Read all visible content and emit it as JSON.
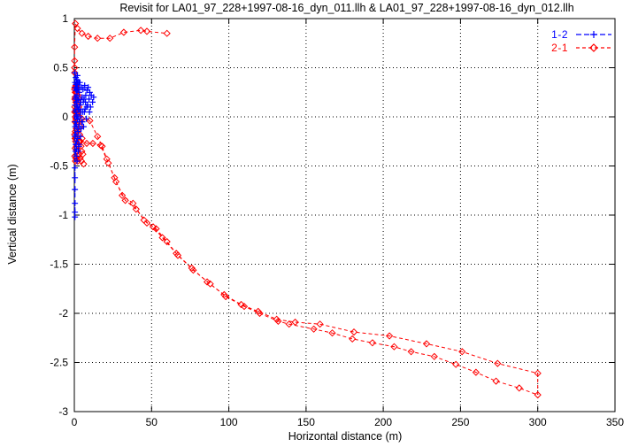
{
  "title": "Revisit for LA01_97_228+1997-08-16_dyn_011.llh & LA01_97_228+1997-08-16_dyn_012.llh",
  "chart_data": {
    "type": "scatter",
    "title": "Revisit for LA01_97_228+1997-08-16_dyn_011.llh & LA01_97_228+1997-08-16_dyn_012.llh",
    "xlabel": "Horizontal distance (m)",
    "ylabel": "Vertical distance (m)",
    "xlim": [
      0,
      350
    ],
    "ylim": [
      -3,
      1
    ],
    "xticks": [
      0,
      50,
      100,
      150,
      200,
      250,
      300,
      350
    ],
    "yticks": [
      1,
      0.5,
      0,
      -0.5,
      -1,
      -1.5,
      -2,
      -2.5,
      -3
    ],
    "grid": true,
    "legend_position": "top-right-inside",
    "background": "#ffffff",
    "axis_color": "#000000",
    "series": [
      {
        "name": "1-2",
        "color": "#0000ff",
        "marker": "plus",
        "linestyle": "dashed",
        "cluster": [
          [
            0.4,
            -0.2
          ],
          [
            0.5,
            0.12
          ],
          [
            0.5,
            0.35
          ],
          [
            0.6,
            0.3
          ],
          [
            0.7,
            -0.05
          ],
          [
            0.7,
            0.07
          ],
          [
            0.8,
            -0.35
          ],
          [
            0.9,
            0.2
          ],
          [
            0.9,
            -0.28
          ],
          [
            1.0,
            0.05
          ],
          [
            1.0,
            0.4
          ],
          [
            1.05,
            0.27
          ],
          [
            1.1,
            -0.18
          ],
          [
            1.2,
            0.3
          ],
          [
            1.2,
            -0.4
          ],
          [
            1.3,
            -0.08
          ],
          [
            1.3,
            0.0
          ],
          [
            1.4,
            0.15
          ],
          [
            1.5,
            -0.25
          ],
          [
            1.5,
            0.38
          ],
          [
            1.55,
            0.12
          ],
          [
            1.6,
            0.02
          ],
          [
            1.6,
            0.28
          ],
          [
            1.7,
            0.22
          ],
          [
            1.8,
            -0.12
          ],
          [
            1.8,
            -0.45
          ],
          [
            1.9,
            0.33
          ],
          [
            2.0,
            -0.02
          ],
          [
            2.0,
            0.42
          ],
          [
            2.1,
            0.1
          ],
          [
            2.2,
            -0.22
          ],
          [
            2.2,
            0.35
          ],
          [
            2.3,
            0.28
          ],
          [
            2.35,
            0.17
          ],
          [
            2.4,
            0.0
          ],
          [
            2.5,
            -0.15
          ],
          [
            2.5,
            -0.35
          ],
          [
            2.6,
            0.18
          ],
          [
            2.7,
            0.07
          ],
          [
            2.8,
            -0.3
          ],
          [
            2.9,
            0.35
          ],
          [
            3.0,
            0.08
          ],
          [
            3.0,
            -0.28
          ],
          [
            3.1,
            -0.05
          ],
          [
            3.2,
            0.25
          ],
          [
            3.3,
            0.3
          ],
          [
            3.4,
            -0.1
          ],
          [
            3.5,
            0.12
          ],
          [
            3.6,
            0.35
          ],
          [
            3.8,
            0.0
          ],
          [
            4.0,
            -0.2
          ],
          [
            4.1,
            0.05
          ],
          [
            4.2,
            0.15
          ],
          [
            4.4,
            -0.12
          ],
          [
            4.5,
            0.3
          ],
          [
            4.8,
            -0.05
          ],
          [
            5.0,
            0.2
          ],
          [
            5.2,
            -0.05
          ],
          [
            5.3,
            0.05
          ],
          [
            5.6,
            0.28
          ],
          [
            5.8,
            0.15
          ],
          [
            6.0,
            -0.1
          ],
          [
            6.3,
            0.18
          ],
          [
            6.5,
            0.05
          ],
          [
            6.7,
            0.32
          ],
          [
            7.0,
            0.08
          ],
          [
            7.2,
            0.15
          ],
          [
            7.4,
            0.22
          ],
          [
            7.8,
            -0.02
          ],
          [
            8.0,
            0.1
          ],
          [
            8.2,
            0.27
          ],
          [
            8.6,
            0.12
          ],
          [
            9.0,
            0.3
          ],
          [
            9.5,
            0.18
          ],
          [
            9.8,
            0.05
          ],
          [
            10.0,
            0.25
          ],
          [
            10.5,
            0.1
          ],
          [
            11.0,
            0.22
          ],
          [
            11.8,
            0.15
          ],
          [
            12.5,
            0.2
          ],
          [
            0.6,
            -0.1
          ],
          [
            0.8,
            0.18
          ],
          [
            1.1,
            0.33
          ],
          [
            1.45,
            -0.33
          ]
        ],
        "errorbar": {
          "x": 0.4,
          "y_top": 0.45,
          "y_bottom": -1.02,
          "marker_ys": [
            0.45,
            -0.52,
            -0.62,
            -0.74,
            -0.88,
            -0.97,
            -1.02
          ]
        }
      },
      {
        "name": "2-1",
        "color": "#ff0000",
        "marker": "diamond",
        "linestyle": "dashed",
        "cluster": [
          [
            0.15,
            0.28
          ],
          [
            0.2,
            -0.18
          ],
          [
            0.25,
            0.05
          ],
          [
            0.3,
            0.1
          ],
          [
            0.3,
            -0.4
          ],
          [
            0.4,
            -0.05
          ],
          [
            0.4,
            0.3
          ],
          [
            0.45,
            -0.22
          ],
          [
            0.5,
            0.2
          ],
          [
            0.5,
            -0.32
          ],
          [
            0.6,
            -0.15
          ],
          [
            0.6,
            0.25
          ],
          [
            0.7,
            0.05
          ],
          [
            0.7,
            -0.45
          ],
          [
            0.8,
            -0.25
          ],
          [
            0.8,
            0.3
          ],
          [
            0.9,
            0.15
          ],
          [
            0.9,
            -0.42
          ],
          [
            1.0,
            -0.02
          ],
          [
            1.0,
            0.32
          ],
          [
            1.05,
            -0.22
          ],
          [
            1.1,
            0.25
          ],
          [
            1.2,
            -0.12
          ],
          [
            1.2,
            0.3
          ],
          [
            1.3,
            0.08
          ],
          [
            1.35,
            -0.42
          ],
          [
            1.4,
            -0.3
          ],
          [
            1.5,
            0.18
          ],
          [
            1.5,
            0.3
          ],
          [
            1.6,
            -0.08
          ],
          [
            1.6,
            -0.35
          ],
          [
            1.7,
            0.02
          ],
          [
            1.8,
            -0.2
          ],
          [
            1.8,
            0.25
          ],
          [
            1.9,
            0.12
          ],
          [
            2.0,
            -0.35
          ],
          [
            2.1,
            0.05
          ],
          [
            2.15,
            -0.45
          ],
          [
            2.2,
            -0.15
          ],
          [
            2.3,
            0.22
          ],
          [
            2.4,
            0.15
          ],
          [
            2.5,
            -0.05
          ],
          [
            2.55,
            -0.4
          ],
          [
            2.6,
            0.05
          ],
          [
            2.7,
            -0.25
          ],
          [
            2.8,
            -0.3
          ],
          [
            2.9,
            0.1
          ],
          [
            3.0,
            0.18
          ],
          [
            3.1,
            -0.38
          ],
          [
            3.3,
            0.0
          ],
          [
            3.4,
            -0.25
          ],
          [
            3.5,
            -0.18
          ],
          [
            3.8,
            -0.42
          ],
          [
            4.0,
            -0.1
          ],
          [
            4.3,
            -0.3
          ],
          [
            4.6,
            -0.45
          ],
          [
            4.8,
            -0.35
          ],
          [
            5.0,
            -0.22
          ],
          [
            5.5,
            -0.38
          ],
          [
            6.0,
            -0.48
          ],
          [
            0.35,
            0.18
          ],
          [
            0.55,
            0.0
          ]
        ],
        "paths": [
          [
            [
              0.15,
              0.45
            ],
            [
              0.15,
              0.5
            ],
            [
              0.15,
              0.57
            ],
            [
              0.15,
              0.71
            ],
            [
              0.7,
              0.95
            ],
            [
              2,
              0.9
            ],
            [
              5,
              0.85
            ],
            [
              9,
              0.82
            ],
            [
              15,
              0.8
            ],
            [
              23,
              0.8
            ],
            [
              32,
              0.86
            ],
            [
              43,
              0.88
            ],
            [
              47,
              0.87
            ],
            [
              60,
              0.85
            ]
          ],
          [
            [
              5,
              -0.02
            ],
            [
              10,
              -0.04
            ],
            [
              15,
              -0.2
            ],
            [
              18,
              -0.3
            ],
            [
              21,
              -0.43
            ],
            [
              26,
              -0.62
            ],
            [
              31,
              -0.8
            ],
            [
              38,
              -0.88
            ],
            [
              45,
              -1.05
            ],
            [
              51,
              -1.12
            ],
            [
              57,
              -1.23
            ],
            [
              66,
              -1.39
            ],
            [
              76,
              -1.54
            ],
            [
              86,
              -1.68
            ],
            [
              97,
              -1.81
            ],
            [
              108,
              -1.91
            ],
            [
              119,
              -1.98
            ],
            [
              131,
              -2.06
            ],
            [
              143,
              -2.09
            ],
            [
              159,
              -2.11
            ],
            [
              181,
              -2.19
            ],
            [
              204,
              -2.23
            ],
            [
              228,
              -2.31
            ],
            [
              251,
              -2.39
            ],
            [
              274,
              -2.51
            ],
            [
              300,
              -2.61
            ],
            [
              300,
              -2.83
            ],
            [
              288,
              -2.76
            ],
            [
              273,
              -2.69
            ],
            [
              260,
              -2.6
            ],
            [
              247,
              -2.52
            ],
            [
              233,
              -2.44
            ],
            [
              218,
              -2.39
            ],
            [
              207,
              -2.34
            ],
            [
              193,
              -2.3
            ],
            [
              180,
              -2.26
            ],
            [
              167,
              -2.2
            ],
            [
              155,
              -2.16
            ],
            [
              139,
              -2.11
            ],
            [
              132,
              -2.08
            ],
            [
              120,
              -2.0
            ],
            [
              110,
              -1.93
            ],
            [
              98,
              -1.83
            ],
            [
              88,
              -1.7
            ],
            [
              77,
              -1.56
            ],
            [
              67,
              -1.41
            ],
            [
              60,
              -1.27
            ],
            [
              53,
              -1.14
            ],
            [
              47,
              -1.08
            ],
            [
              40,
              -0.94
            ],
            [
              33,
              -0.85
            ],
            [
              27,
              -0.66
            ],
            [
              22,
              -0.47
            ],
            [
              17,
              -0.29
            ],
            [
              12,
              -0.27
            ],
            [
              8,
              -0.27
            ],
            [
              4,
              -0.25
            ]
          ]
        ]
      }
    ]
  }
}
